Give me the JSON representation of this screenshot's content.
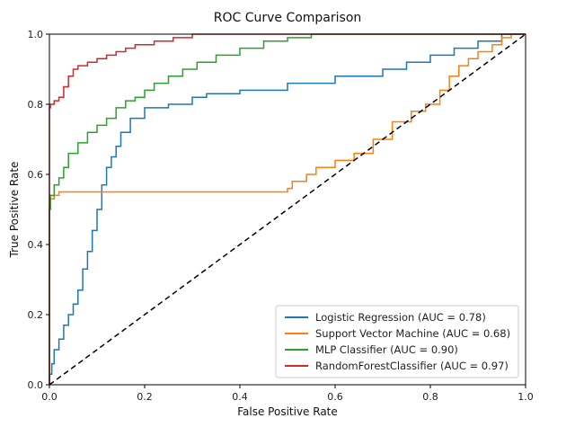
{
  "chart_data": {
    "type": "line",
    "title": "ROC Curve Comparison",
    "xlabel": "False Positive Rate",
    "ylabel": "True Positive Rate",
    "xlim": [
      0.0,
      1.0
    ],
    "ylim": [
      0.0,
      1.0
    ],
    "x_ticks": [
      "0.0",
      "0.2",
      "0.4",
      "0.6",
      "0.8",
      "1.0"
    ],
    "y_ticks": [
      "0.0",
      "0.2",
      "0.4",
      "0.6",
      "0.8",
      "1.0"
    ],
    "grid": false,
    "legend_position": "lower-right",
    "series": [
      {
        "name": "Logistic Regression (AUC = 0.78)",
        "color": "#1f77b4",
        "style": "step",
        "points": [
          [
            0,
            0
          ],
          [
            0.005,
            0.03
          ],
          [
            0.01,
            0.06
          ],
          [
            0.02,
            0.1
          ],
          [
            0.03,
            0.13
          ],
          [
            0.04,
            0.17
          ],
          [
            0.05,
            0.2
          ],
          [
            0.06,
            0.23
          ],
          [
            0.07,
            0.27
          ],
          [
            0.08,
            0.33
          ],
          [
            0.09,
            0.38
          ],
          [
            0.1,
            0.44
          ],
          [
            0.11,
            0.5
          ],
          [
            0.12,
            0.57
          ],
          [
            0.13,
            0.62
          ],
          [
            0.14,
            0.65
          ],
          [
            0.15,
            0.68
          ],
          [
            0.17,
            0.72
          ],
          [
            0.2,
            0.76
          ],
          [
            0.25,
            0.79
          ],
          [
            0.3,
            0.8
          ],
          [
            0.33,
            0.82
          ],
          [
            0.4,
            0.83
          ],
          [
            0.5,
            0.84
          ],
          [
            0.6,
            0.86
          ],
          [
            0.7,
            0.88
          ],
          [
            0.75,
            0.9
          ],
          [
            0.8,
            0.92
          ],
          [
            0.85,
            0.94
          ],
          [
            0.9,
            0.96
          ],
          [
            0.95,
            0.98
          ],
          [
            1.0,
            1.0
          ]
        ]
      },
      {
        "name": "Support Vector Machine (AUC = 0.68)",
        "color": "#ff7f0e",
        "style": "step",
        "points": [
          [
            0,
            0
          ],
          [
            0.002,
            0.51
          ],
          [
            0.01,
            0.53
          ],
          [
            0.02,
            0.54
          ],
          [
            0.03,
            0.55
          ],
          [
            0.5,
            0.55
          ],
          [
            0.51,
            0.56
          ],
          [
            0.54,
            0.58
          ],
          [
            0.56,
            0.6
          ],
          [
            0.6,
            0.62
          ],
          [
            0.64,
            0.64
          ],
          [
            0.68,
            0.66
          ],
          [
            0.72,
            0.7
          ],
          [
            0.76,
            0.75
          ],
          [
            0.79,
            0.78
          ],
          [
            0.82,
            0.8
          ],
          [
            0.84,
            0.84
          ],
          [
            0.86,
            0.88
          ],
          [
            0.88,
            0.91
          ],
          [
            0.9,
            0.93
          ],
          [
            0.93,
            0.95
          ],
          [
            0.95,
            0.97
          ],
          [
            0.97,
            0.99
          ],
          [
            1.0,
            1.0
          ]
        ]
      },
      {
        "name": "MLP Classifier (AUC = 0.90)",
        "color": "#2ca02c",
        "style": "step",
        "points": [
          [
            0,
            0
          ],
          [
            0.002,
            0.5
          ],
          [
            0.01,
            0.54
          ],
          [
            0.02,
            0.57
          ],
          [
            0.03,
            0.59
          ],
          [
            0.04,
            0.62
          ],
          [
            0.06,
            0.66
          ],
          [
            0.08,
            0.69
          ],
          [
            0.1,
            0.72
          ],
          [
            0.12,
            0.74
          ],
          [
            0.14,
            0.76
          ],
          [
            0.16,
            0.79
          ],
          [
            0.18,
            0.81
          ],
          [
            0.2,
            0.82
          ],
          [
            0.22,
            0.84
          ],
          [
            0.25,
            0.86
          ],
          [
            0.28,
            0.88
          ],
          [
            0.31,
            0.9
          ],
          [
            0.35,
            0.92
          ],
          [
            0.4,
            0.94
          ],
          [
            0.45,
            0.96
          ],
          [
            0.5,
            0.98
          ],
          [
            0.55,
            0.99
          ],
          [
            0.6,
            1.0
          ],
          [
            1.0,
            1.0
          ]
        ]
      },
      {
        "name": "RandomForestClassifier (AUC = 0.97)",
        "color": "#d62728",
        "style": "step",
        "points": [
          [
            0,
            0
          ],
          [
            0.002,
            0.79
          ],
          [
            0.01,
            0.8
          ],
          [
            0.02,
            0.81
          ],
          [
            0.03,
            0.82
          ],
          [
            0.04,
            0.85
          ],
          [
            0.05,
            0.88
          ],
          [
            0.06,
            0.9
          ],
          [
            0.08,
            0.91
          ],
          [
            0.1,
            0.92
          ],
          [
            0.12,
            0.93
          ],
          [
            0.14,
            0.94
          ],
          [
            0.16,
            0.95
          ],
          [
            0.18,
            0.96
          ],
          [
            0.22,
            0.97
          ],
          [
            0.26,
            0.98
          ],
          [
            0.3,
            0.99
          ],
          [
            0.33,
            1.0
          ],
          [
            1.0,
            1.0
          ]
        ]
      },
      {
        "name": "",
        "color": "#000000",
        "style": "dashed",
        "points": [
          [
            0,
            0
          ],
          [
            1,
            1
          ]
        ]
      }
    ]
  }
}
